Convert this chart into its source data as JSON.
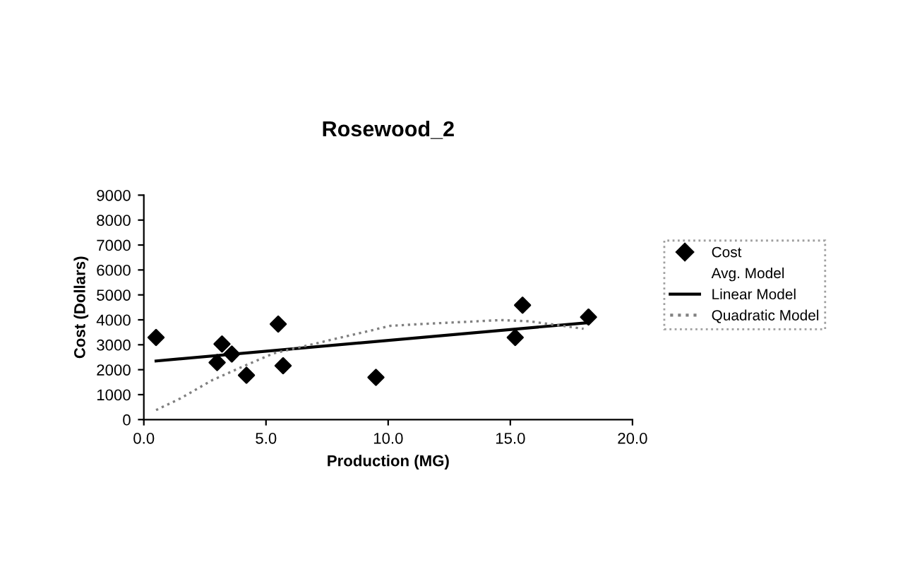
{
  "chart_data": {
    "type": "scatter",
    "title": "Rosewood_2",
    "xlabel": "Production (MG)",
    "ylabel": "Cost (Dollars)",
    "xlim": [
      0,
      20
    ],
    "xticks": [
      {
        "value": 0,
        "label": "0.0"
      },
      {
        "value": 5,
        "label": "5.0"
      },
      {
        "value": 10,
        "label": "10.0"
      },
      {
        "value": 15,
        "label": "15.0"
      },
      {
        "value": 20,
        "label": "20.0"
      }
    ],
    "ylim": [
      0,
      9000
    ],
    "yticks": [
      0,
      1000,
      2000,
      3000,
      4000,
      5000,
      6000,
      7000,
      8000,
      9000
    ],
    "grid": false,
    "legend": "right",
    "series": [
      {
        "name": "Cost",
        "marker": "diamond",
        "color": "#000000",
        "x": [
          0.5,
          3.0,
          3.2,
          3.6,
          4.2,
          5.5,
          5.7,
          9.5,
          15.5,
          15.2,
          18.2
        ],
        "values": [
          3290,
          2290,
          3030,
          2630,
          1780,
          3830,
          2160,
          1690,
          4590,
          3290,
          4110
        ]
      },
      {
        "name": "Avg. Model",
        "type": "line"
      },
      {
        "name": "Linear Model",
        "type": "line",
        "line_style": "solid",
        "color": "#000000",
        "x": [
          0.5,
          18.1
        ],
        "values": [
          2350,
          3880
        ]
      },
      {
        "name": "Quadratic Model",
        "type": "line",
        "line_style": "dotted",
        "color": "#808080",
        "x": [
          0.5,
          1.5,
          2.8,
          4.2,
          5.3,
          10.1,
          11.3,
          13.0,
          14.6,
          15.8,
          18.0
        ],
        "values": [
          380,
          850,
          1580,
          2190,
          2650,
          3760,
          3830,
          3910,
          3990,
          3940,
          3640
        ]
      }
    ]
  }
}
